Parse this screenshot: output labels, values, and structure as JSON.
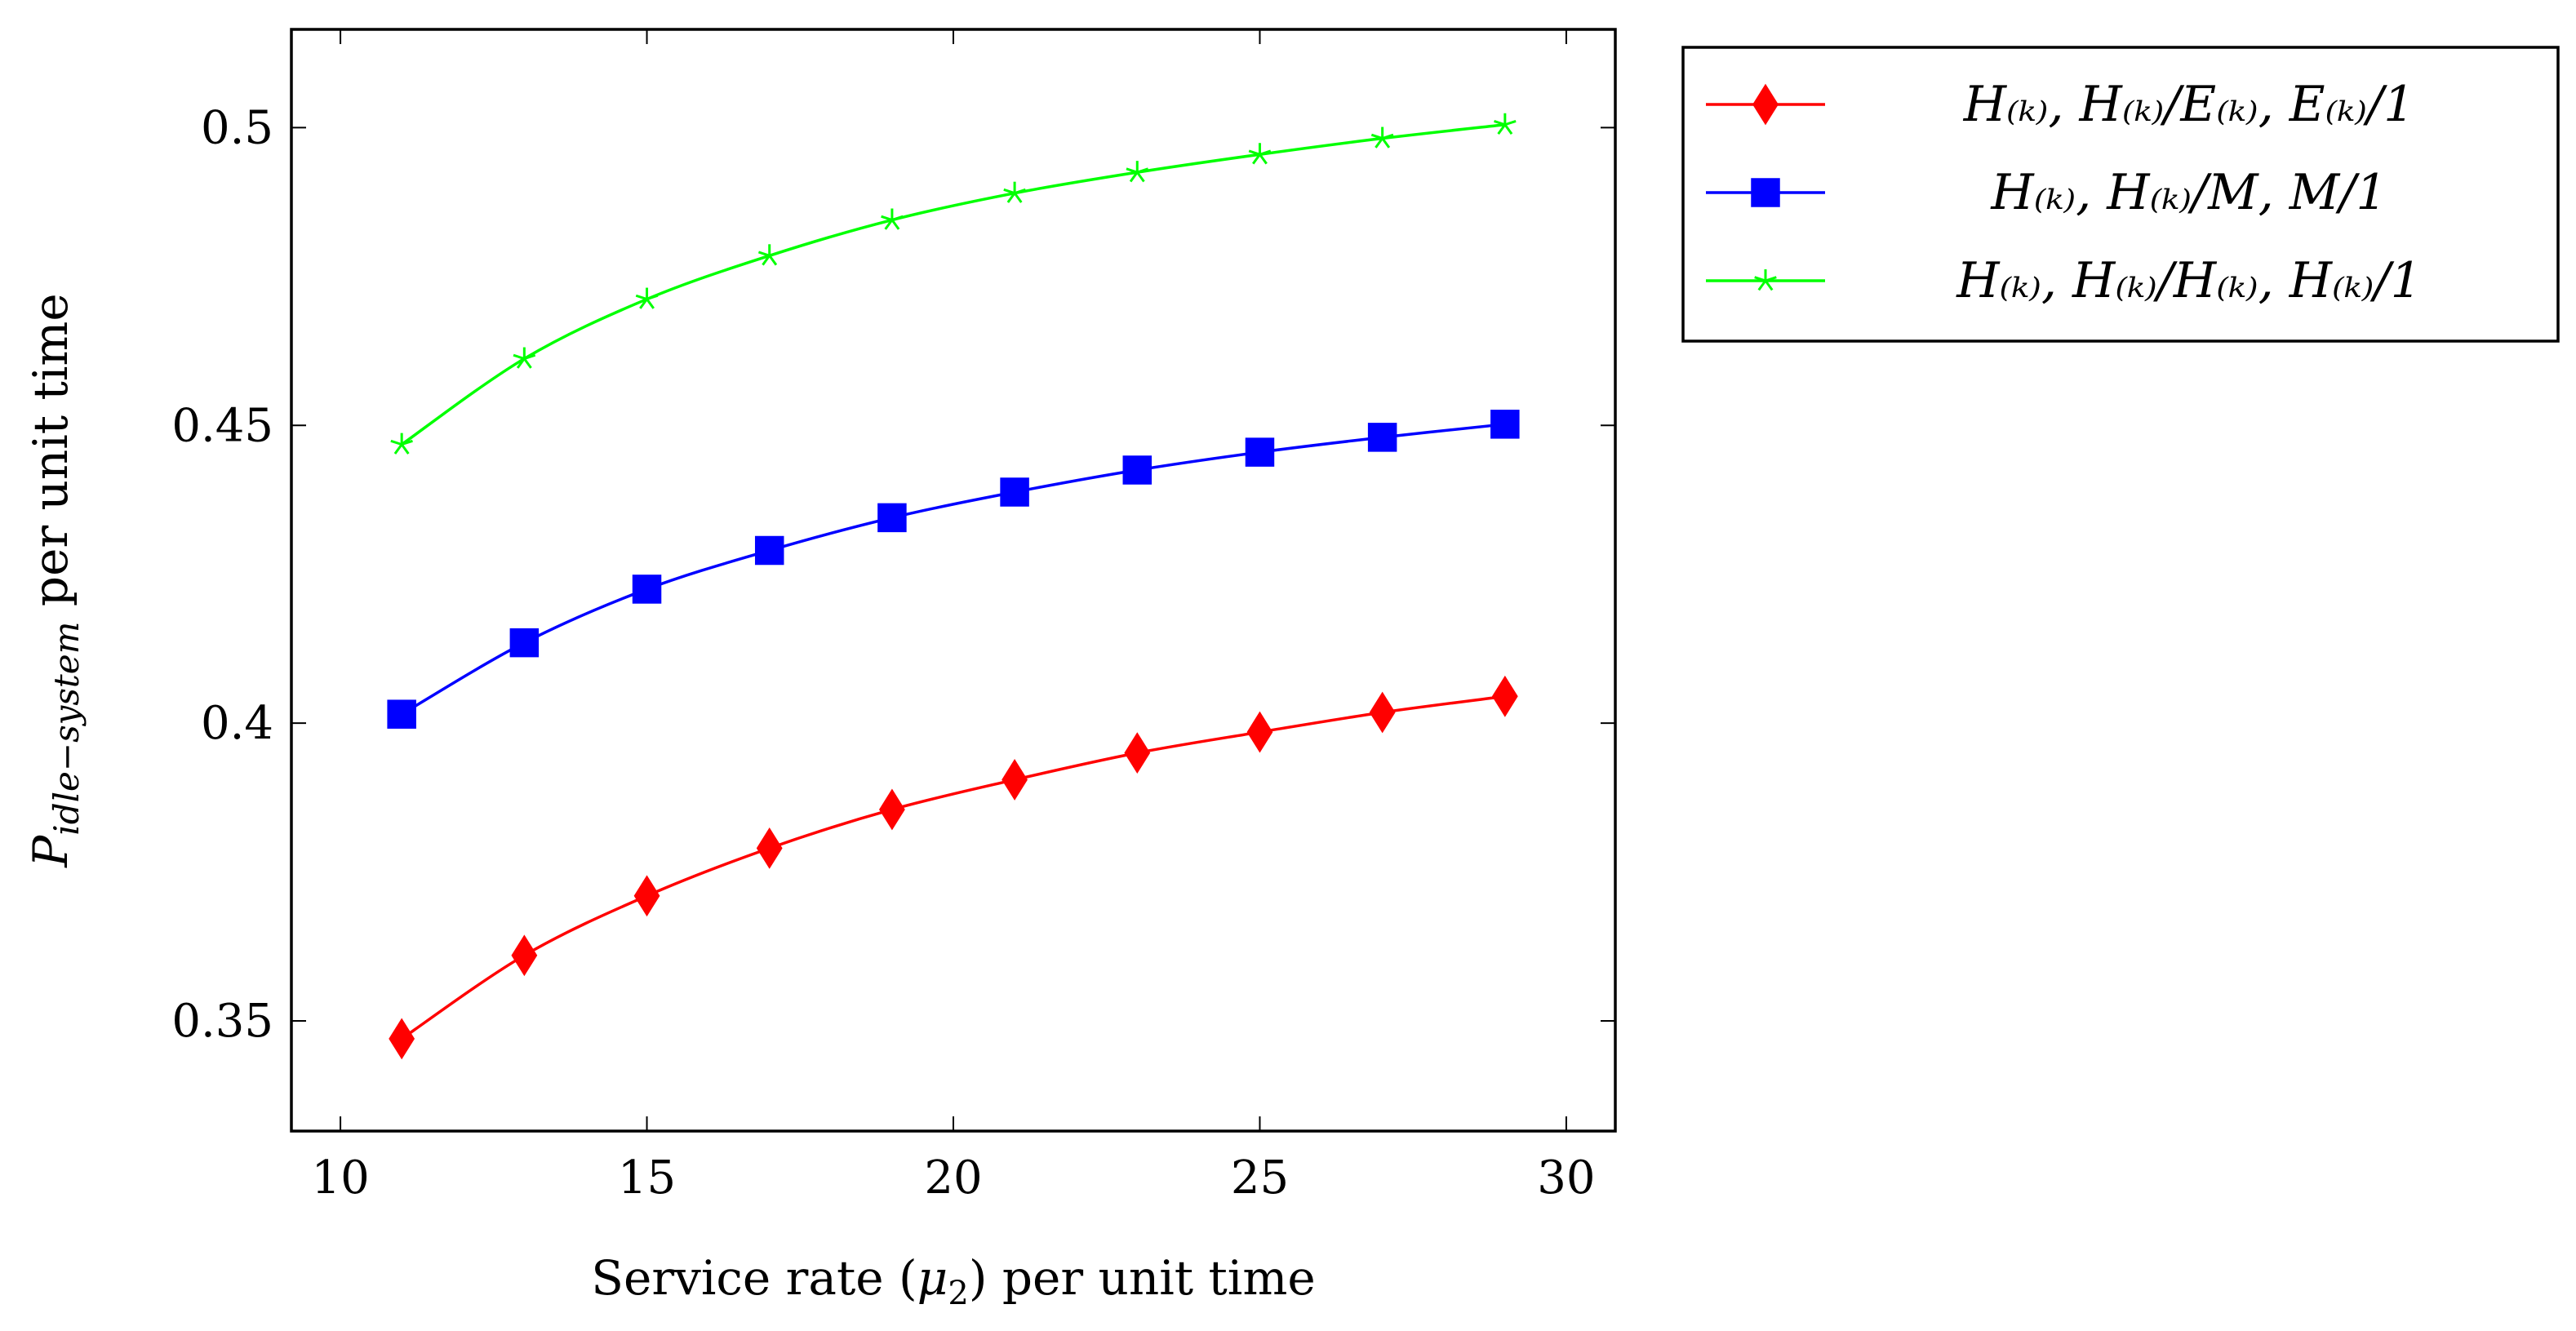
{
  "chart_data": {
    "type": "line",
    "title": "",
    "xlabel": "Service rate (μ2) per unit time",
    "xlabel_parts": {
      "pre": "Service rate (",
      "sym": "μ",
      "sub": "2",
      "post": ") per unit time"
    },
    "ylabel": "P idle−system per unit time",
    "ylabel_parts": {
      "sym": "P",
      "sub": "idle−system",
      "post": " per unit time"
    },
    "xlim": [
      9.2,
      30.8
    ],
    "ylim": [
      0.3315,
      0.5165
    ],
    "xticks": [
      10,
      15,
      20,
      25,
      30
    ],
    "xtick_labels": [
      "10",
      "15",
      "20",
      "25",
      "30"
    ],
    "yticks": [
      0.35,
      0.4,
      0.45,
      0.5
    ],
    "ytick_labels": [
      "0.35",
      "0.4",
      "0.45",
      "0.5"
    ],
    "grid": false,
    "legend_position": "outside-top-right",
    "x": [
      11,
      13,
      15,
      17,
      19,
      21,
      23,
      25,
      27,
      29
    ],
    "series": [
      {
        "name": "H(k),H(k)/E(k),E(k)/1",
        "legend_label": "H₍ₖ₎, H₍ₖ₎/E₍ₖ₎, E₍ₖ₎/1",
        "color": "#ff0000",
        "marker": "diamond",
        "values": [
          0.347,
          0.361,
          0.371,
          0.379,
          0.3855,
          0.3905,
          0.395,
          0.3985,
          0.4018,
          0.4045
        ]
      },
      {
        "name": "H(k),H(k)/M,M/1",
        "legend_label": "H₍ₖ₎, H₍ₖ₎/M, M/1",
        "color": "#0000ff",
        "marker": "square",
        "values": [
          0.4015,
          0.4135,
          0.4225,
          0.429,
          0.4345,
          0.4388,
          0.4425,
          0.4455,
          0.448,
          0.4502
        ]
      },
      {
        "name": "H(k),H(k)/H(k),H(k)/1",
        "legend_label": "H₍ₖ₎, H₍ₖ₎/H₍ₖ₎, H₍ₖ₎/1",
        "color": "#00ff00",
        "marker": "star",
        "values": [
          0.4468,
          0.4612,
          0.4712,
          0.4785,
          0.4845,
          0.489,
          0.4925,
          0.4955,
          0.4982,
          0.5005
        ]
      }
    ]
  }
}
